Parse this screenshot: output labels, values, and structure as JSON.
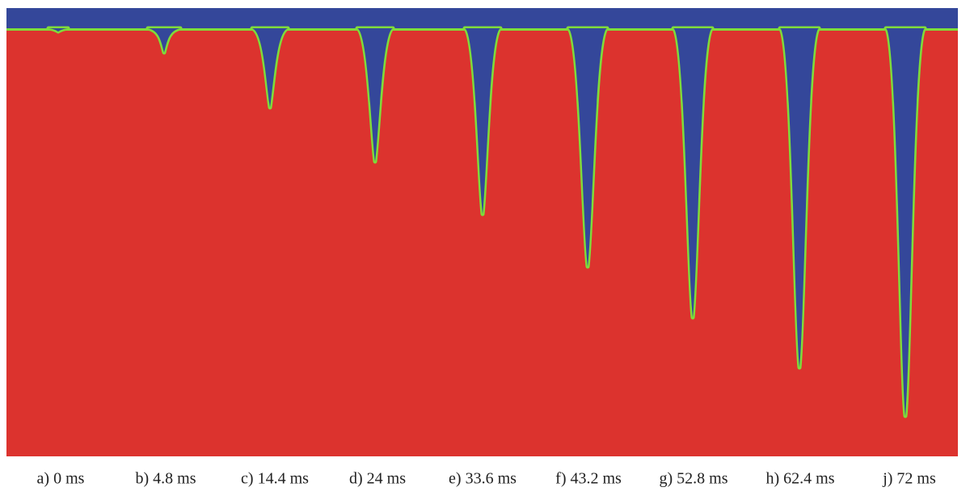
{
  "panels": [
    {
      "label": "a) 0 ms"
    },
    {
      "label": "b) 4.8 ms"
    },
    {
      "label": "c) 14.4 ms"
    },
    {
      "label": "d) 24 ms"
    },
    {
      "label": "e) 33.6 ms"
    },
    {
      "label": "f) 43.2 ms"
    },
    {
      "label": "g) 52.8 ms"
    },
    {
      "label": "h) 62.4 ms"
    },
    {
      "label": "j) 72 ms"
    }
  ]
}
